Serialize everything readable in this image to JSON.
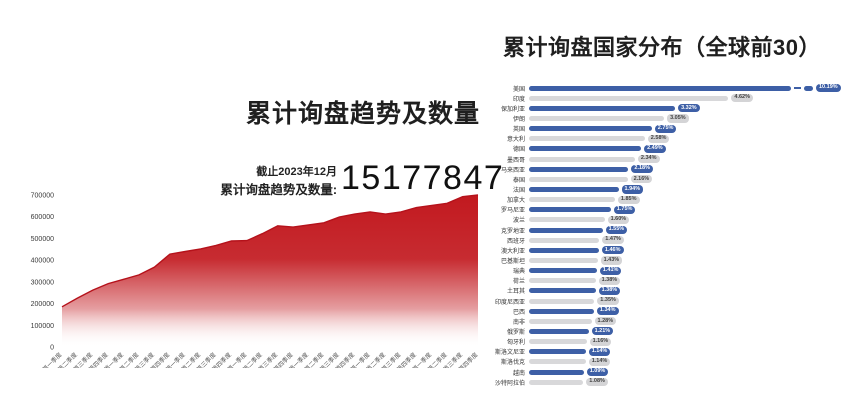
{
  "left_panel": {
    "title": "累计询盘趋势及数量",
    "as_of": "截止2023年12月",
    "total_label": "累计询盘趋势及数量:",
    "total_value": "15177847"
  },
  "right_panel": {
    "title": "累计询盘国家分布（全球前30）"
  },
  "colors": {
    "area_red": "#c2191f",
    "line_red": "#b5121b",
    "bar_blue": "#3d5fa6",
    "bar_gray": "#d8d8da",
    "badge_gray_bg": "#d4d4d6"
  },
  "chart_data": [
    {
      "type": "area",
      "title": "累计询盘趋势及数量",
      "xlabel": "",
      "ylabel": "",
      "ylim": [
        0,
        700000
      ],
      "y_ticks": [
        0,
        100000,
        200000,
        300000,
        400000,
        500000,
        600000,
        700000
      ],
      "grid": false,
      "legend_position": "none",
      "x": [
        "2017年第一季度",
        "2017年第二季度",
        "2017年第三季度",
        "2017年第四季度",
        "2018年第一季度",
        "2018年第二季度",
        "2018年第三季度",
        "2018年第四季度",
        "2019年第一季度",
        "2019年第二季度",
        "2019年第三季度",
        "2019年第四季度",
        "2020年第一季度",
        "2020年第二季度",
        "2020年第三季度",
        "2020年第四季度",
        "2021年第一季度",
        "2021年第二季度",
        "2021年第三季度",
        "2021年第四季度",
        "2022年第一季度",
        "2022年第二季度",
        "2022年第三季度",
        "2022年第四季度",
        "2023年第一季度",
        "2023年第二季度",
        "2023年第三季度",
        "2023年第四季度"
      ],
      "values": [
        185000,
        225000,
        262000,
        292000,
        312000,
        332000,
        368000,
        428000,
        440000,
        452000,
        468000,
        488000,
        490000,
        522000,
        558000,
        552000,
        562000,
        572000,
        598000,
        612000,
        622000,
        612000,
        622000,
        642000,
        652000,
        662000,
        692000,
        700000
      ],
      "annotations": {
        "as_of": "截止2023年12月",
        "total": 15177847
      }
    },
    {
      "type": "bar",
      "orientation": "horizontal",
      "title": "累计询盘国家分布（全球前30）",
      "xlabel": "",
      "ylabel": "",
      "grid": false,
      "legend_position": "none",
      "first_bar_axis_break": true,
      "categories": [
        "美国",
        "印度",
        "保加利亚",
        "伊朗",
        "英国",
        "意大利",
        "德国",
        "墨西哥",
        "马来西亚",
        "泰国",
        "法国",
        "加拿大",
        "罗马尼亚",
        "波兰",
        "克罗地亚",
        "西班牙",
        "澳大利亚",
        "巴基斯坦",
        "瑞典",
        "荷兰",
        "土耳其",
        "印度尼西亚",
        "巴西",
        "南非",
        "俄罗斯",
        "匈牙利",
        "斯洛文尼亚",
        "斯洛伐克",
        "越南",
        "沙特阿拉伯"
      ],
      "values": [
        10.19,
        4.62,
        3.32,
        3.05,
        2.75,
        2.58,
        2.49,
        2.34,
        2.18,
        2.16,
        1.94,
        1.85,
        1.75,
        1.6,
        1.55,
        1.47,
        1.46,
        1.43,
        1.41,
        1.38,
        1.38,
        1.35,
        1.34,
        1.28,
        1.21,
        1.16,
        1.14,
        1.14,
        1.09,
        1.08
      ],
      "labels": [
        "10.19%",
        "4.62%",
        "3.32%",
        "3.05%",
        "2.75%",
        "2.58%",
        "2.49%",
        "2.34%",
        "2.18%",
        "2.16%",
        "1.94%",
        "1.85%",
        "1.75%",
        "1.60%",
        "1.55%",
        "1.47%",
        "1.46%",
        "1.43%",
        "1.41%",
        "1.38%",
        "1.38%",
        "1.35%",
        "1.34%",
        "1.28%",
        "1.21%",
        "1.16%",
        "1.14%",
        "1.14%",
        "1.09%",
        "1.08%"
      ]
    }
  ]
}
